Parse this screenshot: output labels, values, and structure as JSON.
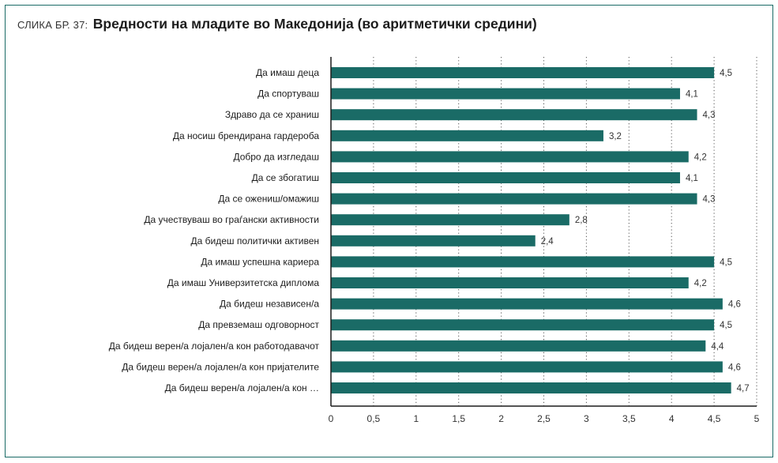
{
  "figure": {
    "prefix": "СЛИКА БР. 37:",
    "title": "Вредности на младите во Македонија (во аритметички средини)"
  },
  "colors": {
    "bar": "#1a6b66",
    "frame": "#1a6b66",
    "axis": "#1c1c1c",
    "grid": "#555555"
  },
  "chart_data": {
    "type": "bar",
    "orientation": "horizontal",
    "title": "Вредности на младите во Македонија (во аритметички средини)",
    "xlabel": "",
    "ylabel": "",
    "xlim": [
      0,
      5
    ],
    "grid": "vertical dotted",
    "legend": "none",
    "categories": [
      "Да имаш деца",
      "Да спортуваш",
      "Здраво да се храниш",
      "Да носиш брендирана гардероба",
      "Добро да изгледаш",
      "Да се збогатиш",
      "Да се ожениш/омажиш",
      "Да учествуваш во граѓански активности",
      "Да бидеш политички активен",
      "Да имаш успешна кариера",
      "Да имаш Универзитетска диплома",
      "Да бидеш независен/а",
      "Да превземаш одговорност",
      "Да бидеш верен/а лојален/а кон работодавачот",
      "Да бидеш верен/а лојален/а кон пријателите",
      "Да бидеш верен/а лојален/а кон …"
    ],
    "values": [
      4.5,
      4.1,
      4.3,
      3.2,
      4.2,
      4.1,
      4.3,
      2.8,
      2.4,
      4.5,
      4.2,
      4.6,
      4.5,
      4.4,
      4.6,
      4.7
    ],
    "value_labels": [
      "4,5",
      "4,1",
      "4,3",
      "3,2",
      "4,2",
      "4,1",
      "4,3",
      "2,8",
      "2,4",
      "4,5",
      "4,2",
      "4,6",
      "4,5",
      "4,4",
      "4,6",
      "4,7"
    ],
    "ticks": [
      0,
      0.5,
      1,
      1.5,
      2,
      2.5,
      3,
      3.5,
      4,
      4.5,
      5
    ],
    "tick_labels": [
      "0",
      "0,5",
      "1",
      "1,5",
      "2",
      "2,5",
      "3",
      "3,5",
      "4",
      "4,5",
      "5"
    ]
  }
}
